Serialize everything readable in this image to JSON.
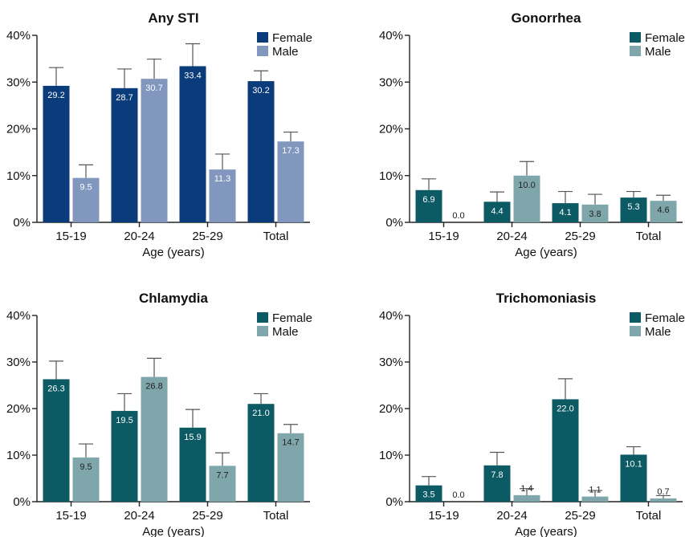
{
  "chart_data": [
    {
      "type": "bar",
      "title": "Any STI",
      "xlabel": "Age (years)",
      "ylabel": "",
      "categories": [
        "15-19",
        "20-24",
        "25-29",
        "Total"
      ],
      "ylim": [
        0,
        40
      ],
      "yticks": [
        "0%",
        "10%",
        "20%",
        "30%",
        "40%"
      ],
      "legend_position": "top-right",
      "colors": {
        "female": "#0a3b7a",
        "male": "#8197be"
      },
      "label_colors": {
        "female": "#ffffff",
        "male": "#ffffff"
      },
      "series": [
        {
          "name": "Female",
          "values": [
            29.2,
            28.7,
            33.4,
            30.2
          ],
          "errors": [
            3.9,
            4.1,
            4.8,
            2.2
          ],
          "labels": [
            "29.2",
            "28.7",
            "33.4",
            "30.2"
          ]
        },
        {
          "name": "Male",
          "values": [
            9.5,
            30.7,
            11.3,
            17.3
          ],
          "errors": [
            2.8,
            4.2,
            3.3,
            2.0
          ],
          "labels": [
            "9.5",
            "30.7",
            "11.3",
            "17.3"
          ]
        }
      ]
    },
    {
      "type": "bar",
      "title": "Gonorrhea",
      "xlabel": "Age (years)",
      "ylabel": "",
      "categories": [
        "15-19",
        "20-24",
        "25-29",
        "Total"
      ],
      "ylim": [
        0,
        40
      ],
      "yticks": [
        "0%",
        "10%",
        "20%",
        "30%",
        "40%"
      ],
      "legend_position": "top-right",
      "colors": {
        "female": "#0c5a64",
        "male": "#7fa6aa"
      },
      "label_colors": {
        "female": "#ffffff",
        "male": "#222222"
      },
      "series": [
        {
          "name": "Female",
          "values": [
            6.9,
            4.4,
            4.1,
            5.3
          ],
          "errors": [
            2.4,
            2.1,
            2.5,
            1.3
          ],
          "labels": [
            "6.9",
            "4.4",
            "4.1",
            "5.3"
          ]
        },
        {
          "name": "Male",
          "values": [
            0.0,
            10.0,
            3.8,
            4.6
          ],
          "errors": [
            0,
            3.0,
            2.2,
            1.2
          ],
          "labels": [
            "0.0",
            "10.0",
            "3.8",
            "4.6"
          ]
        }
      ]
    },
    {
      "type": "bar",
      "title": "Chlamydia",
      "xlabel": "Age (years)",
      "ylabel": "",
      "categories": [
        "15-19",
        "20-24",
        "25-29",
        "Total"
      ],
      "ylim": [
        0,
        40
      ],
      "yticks": [
        "0%",
        "10%",
        "20%",
        "30%",
        "40%"
      ],
      "legend_position": "top-right",
      "colors": {
        "female": "#0c5a64",
        "male": "#7fa6aa"
      },
      "label_colors": {
        "female": "#ffffff",
        "male": "#222222"
      },
      "series": [
        {
          "name": "Female",
          "values": [
            26.3,
            19.5,
            15.9,
            21.0
          ],
          "errors": [
            3.9,
            3.7,
            3.9,
            2.2
          ],
          "labels": [
            "26.3",
            "19.5",
            "15.9",
            "21.0"
          ]
        },
        {
          "name": "Male",
          "values": [
            9.5,
            26.8,
            7.7,
            14.7
          ],
          "errors": [
            2.9,
            4.0,
            2.8,
            1.9
          ],
          "labels": [
            "9.5",
            "26.8",
            "7.7",
            "14.7"
          ]
        }
      ]
    },
    {
      "type": "bar",
      "title": "Trichomoniasis",
      "xlabel": "Age (years)",
      "ylabel": "",
      "categories": [
        "15-19",
        "20-24",
        "25-29",
        "Total"
      ],
      "ylim": [
        0,
        40
      ],
      "yticks": [
        "0%",
        "10%",
        "20%",
        "30%",
        "40%"
      ],
      "legend_position": "top-right",
      "colors": {
        "female": "#0c5a64",
        "male": "#7fa6aa"
      },
      "label_colors": {
        "female": "#ffffff",
        "male": "#222222"
      },
      "series": [
        {
          "name": "Female",
          "values": [
            3.5,
            7.8,
            22.0,
            10.1
          ],
          "errors": [
            1.9,
            2.8,
            4.4,
            1.7
          ],
          "labels": [
            "3.5",
            "7.8",
            "22.0",
            "10.1"
          ]
        },
        {
          "name": "Male",
          "values": [
            0.0,
            1.4,
            1.1,
            0.7
          ],
          "errors": [
            0,
            1.4,
            1.3,
            0.6
          ],
          "labels": [
            "0.0",
            "1.4",
            "1.1",
            "0.7"
          ]
        }
      ]
    }
  ]
}
